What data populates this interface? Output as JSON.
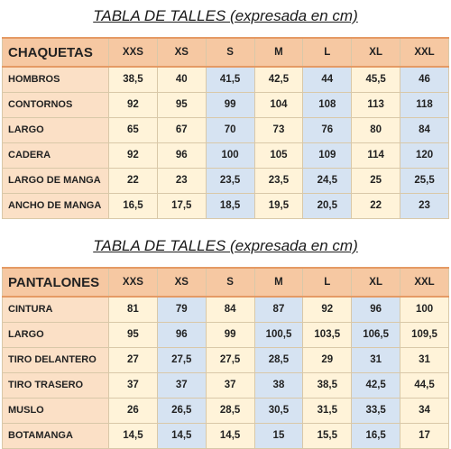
{
  "jackets": {
    "title": "TABLA DE TALLES (expresada en cm)",
    "header": "CHAQUETAS",
    "sizes": [
      "XXS",
      "XS",
      "S",
      "M",
      "L",
      "XL",
      "XXL"
    ],
    "rows": [
      {
        "label": "HOMBROS",
        "values": [
          "38,5",
          "40",
          "41,5",
          "42,5",
          "44",
          "45,5",
          "46"
        ]
      },
      {
        "label": "CONTORNOS",
        "values": [
          "92",
          "95",
          "99",
          "104",
          "108",
          "113",
          "118"
        ]
      },
      {
        "label": "LARGO",
        "values": [
          "65",
          "67",
          "70",
          "73",
          "76",
          "80",
          "84"
        ]
      },
      {
        "label": "CADERA",
        "values": [
          "92",
          "96",
          "100",
          "105",
          "109",
          "114",
          "120"
        ]
      },
      {
        "label": "LARGO DE MANGA",
        "values": [
          "22",
          "23",
          "23,5",
          "23,5",
          "24,5",
          "25",
          "25,5"
        ]
      },
      {
        "label": "ANCHO DE MANGA",
        "values": [
          "16,5",
          "17,5",
          "18,5",
          "19,5",
          "20,5",
          "22",
          "23"
        ]
      }
    ]
  },
  "pants": {
    "title": "TABLA DE TALLES (expresada en cm)",
    "header": "PANTALONES",
    "sizes": [
      "XXS",
      "XS",
      "S",
      "M",
      "L",
      "XL",
      "XXL"
    ],
    "rows": [
      {
        "label": "CINTURA",
        "values": [
          "81",
          "79",
          "84",
          "87",
          "92",
          "96",
          "100"
        ]
      },
      {
        "label": "LARGO",
        "values": [
          "95",
          "96",
          "99",
          "100,5",
          "103,5",
          "106,5",
          "109,5"
        ]
      },
      {
        "label": "TIRO DELANTERO",
        "values": [
          "27",
          "27,5",
          "27,5",
          "28,5",
          "29",
          "31",
          "31"
        ]
      },
      {
        "label": "TIRO TRASERO",
        "values": [
          "37",
          "37",
          "37",
          "38",
          "38,5",
          "42,5",
          "44,5"
        ]
      },
      {
        "label": "MUSLO",
        "values": [
          "26",
          "26,5",
          "28,5",
          "30,5",
          "31,5",
          "33,5",
          "34"
        ]
      },
      {
        "label": "BOTAMANGA",
        "values": [
          "14,5",
          "14,5",
          "14,5",
          "15",
          "15,5",
          "16,5",
          "17"
        ]
      }
    ]
  },
  "colors": {
    "header_bg": "#f6c8a2",
    "label_bg": "#fbe0c6",
    "cell_warm": "#fff3d9",
    "cell_blue": "#d6e3f2"
  }
}
